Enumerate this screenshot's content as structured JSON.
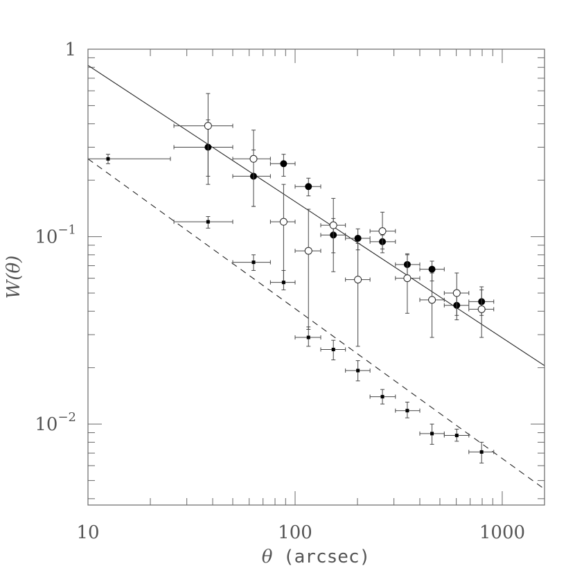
{
  "chart_data": {
    "type": "scatter",
    "xscale": "log",
    "yscale": "log",
    "xlim": [
      10,
      1600
    ],
    "ylim": [
      0.0037,
      1
    ],
    "xlabel_symbol": "θ",
    "xlabel_unit": "(arcsec)",
    "ylabel_main": "W(",
    "ylabel_symbol": "θ",
    "ylabel_close": ")",
    "x_ticks": [
      {
        "value": 10,
        "label": "10"
      },
      {
        "value": 100,
        "label": "100"
      },
      {
        "value": 1000,
        "label": "1000"
      }
    ],
    "y_ticks": [
      {
        "value": 1,
        "base": "1",
        "exp": ""
      },
      {
        "value": 0.1,
        "base": "10",
        "exp": "−1"
      },
      {
        "value": 0.01,
        "base": "10",
        "exp": "−2"
      }
    ],
    "series": [
      {
        "marker": "filled-circle",
        "points": [
          {
            "x": 38,
            "y": 0.3,
            "xlo": 26,
            "xhi": 50,
            "ylo": 0.19,
            "yhi": 0.42
          },
          {
            "x": 63,
            "y": 0.21,
            "xlo": 50,
            "xhi": 76,
            "ylo": 0.145,
            "yhi": 0.29
          },
          {
            "x": 88,
            "y": 0.245,
            "xlo": 76,
            "xhi": 100,
            "ylo": 0.21,
            "yhi": 0.275
          },
          {
            "x": 116,
            "y": 0.185,
            "xlo": 100,
            "xhi": 133,
            "ylo": 0.165,
            "yhi": 0.205
          },
          {
            "x": 153,
            "y": 0.102,
            "xlo": 133,
            "xhi": 175,
            "ylo": 0.082,
            "yhi": 0.125
          },
          {
            "x": 201,
            "y": 0.098,
            "xlo": 175,
            "xhi": 230,
            "ylo": 0.085,
            "yhi": 0.11
          },
          {
            "x": 264,
            "y": 0.094,
            "xlo": 230,
            "xhi": 305,
            "ylo": 0.086,
            "yhi": 0.102
          },
          {
            "x": 348,
            "y": 0.071,
            "xlo": 305,
            "xhi": 400,
            "ylo": 0.06,
            "yhi": 0.081
          },
          {
            "x": 458,
            "y": 0.067,
            "xlo": 400,
            "xhi": 525,
            "ylo": 0.058,
            "yhi": 0.074
          },
          {
            "x": 603,
            "y": 0.043,
            "xlo": 525,
            "xhi": 690,
            "ylo": 0.036,
            "yhi": 0.05
          },
          {
            "x": 795,
            "y": 0.045,
            "xlo": 690,
            "xhi": 910,
            "ylo": 0.038,
            "yhi": 0.052
          }
        ]
      },
      {
        "marker": "open-circle",
        "points": [
          {
            "x": 38,
            "y": 0.39,
            "xlo": 26,
            "xhi": 50,
            "ylo": 0.21,
            "yhi": 0.58
          },
          {
            "x": 63,
            "y": 0.26,
            "xlo": 50,
            "xhi": 76,
            "ylo": 0.145,
            "yhi": 0.37
          },
          {
            "x": 88,
            "y": 0.12,
            "xlo": 76,
            "xhi": 100,
            "ylo": 0.057,
            "yhi": 0.19
          },
          {
            "x": 116,
            "y": 0.084,
            "xlo": 100,
            "xhi": 133,
            "ylo": 0.032,
            "yhi": 0.14
          },
          {
            "x": 153,
            "y": 0.115,
            "xlo": 133,
            "xhi": 175,
            "ylo": 0.065,
            "yhi": 0.16
          },
          {
            "x": 201,
            "y": 0.059,
            "xlo": 175,
            "xhi": 230,
            "ylo": 0.026,
            "yhi": 0.092
          },
          {
            "x": 264,
            "y": 0.107,
            "xlo": 230,
            "xhi": 305,
            "ylo": 0.082,
            "yhi": 0.135
          },
          {
            "x": 348,
            "y": 0.06,
            "xlo": 305,
            "xhi": 400,
            "ylo": 0.039,
            "yhi": 0.08
          },
          {
            "x": 458,
            "y": 0.046,
            "xlo": 400,
            "xhi": 525,
            "ylo": 0.029,
            "yhi": 0.064
          },
          {
            "x": 603,
            "y": 0.05,
            "xlo": 525,
            "xhi": 690,
            "ylo": 0.038,
            "yhi": 0.064
          },
          {
            "x": 795,
            "y": 0.041,
            "xlo": 690,
            "xhi": 910,
            "ylo": 0.029,
            "yhi": 0.054
          }
        ]
      },
      {
        "marker": "filled-square",
        "points": [
          {
            "x": 12.5,
            "y": 0.26,
            "xlo": 10,
            "xhi": 25,
            "ylo": 0.245,
            "yhi": 0.275
          },
          {
            "x": 38,
            "y": 0.12,
            "xlo": 26,
            "xhi": 50,
            "ylo": 0.111,
            "yhi": 0.128
          },
          {
            "x": 63,
            "y": 0.073,
            "xlo": 50,
            "xhi": 76,
            "ylo": 0.066,
            "yhi": 0.08
          },
          {
            "x": 88,
            "y": 0.057,
            "xlo": 76,
            "xhi": 100,
            "ylo": 0.052,
            "yhi": 0.066
          },
          {
            "x": 116,
            "y": 0.029,
            "xlo": 100,
            "xhi": 133,
            "ylo": 0.026,
            "yhi": 0.033
          },
          {
            "x": 153,
            "y": 0.025,
            "xlo": 133,
            "xhi": 175,
            "ylo": 0.022,
            "yhi": 0.028
          },
          {
            "x": 201,
            "y": 0.0193,
            "xlo": 175,
            "xhi": 230,
            "ylo": 0.017,
            "yhi": 0.0218
          },
          {
            "x": 264,
            "y": 0.014,
            "xlo": 230,
            "xhi": 305,
            "ylo": 0.0128,
            "yhi": 0.0153
          },
          {
            "x": 348,
            "y": 0.0118,
            "xlo": 305,
            "xhi": 400,
            "ylo": 0.0108,
            "yhi": 0.0131
          },
          {
            "x": 458,
            "y": 0.0089,
            "xlo": 400,
            "xhi": 525,
            "ylo": 0.0078,
            "yhi": 0.01
          },
          {
            "x": 603,
            "y": 0.0087,
            "xlo": 525,
            "xhi": 690,
            "ylo": 0.0081,
            "yhi": 0.0094
          },
          {
            "x": 795,
            "y": 0.0071,
            "xlo": 690,
            "xhi": 910,
            "ylo": 0.0062,
            "yhi": 0.008
          }
        ]
      }
    ],
    "lines": [
      {
        "style": "solid",
        "x": [
          10,
          1600
        ],
        "y": [
          0.82,
          0.0205
        ]
      },
      {
        "style": "dashed",
        "x": [
          10,
          1600
        ],
        "y": [
          0.26,
          0.0045
        ]
      }
    ]
  }
}
